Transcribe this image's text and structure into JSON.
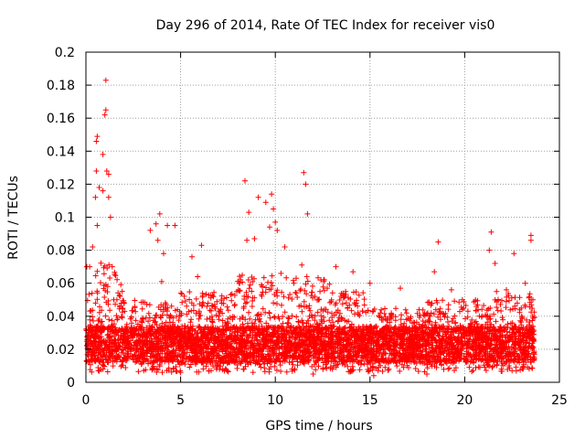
{
  "chart_data": {
    "type": "scatter",
    "title": "Day 296 of 2014, Rate Of TEC Index for receiver vis0",
    "xlabel": "GPS time / hours",
    "ylabel": "ROTI / TECUs",
    "xlim": [
      0,
      25
    ],
    "ylim": [
      0,
      0.2
    ],
    "xticks": [
      0,
      5,
      10,
      15,
      20,
      25
    ],
    "yticks": [
      0,
      0.02,
      0.04,
      0.06,
      0.08,
      0.1,
      0.12,
      0.14,
      0.16,
      0.18,
      0.2
    ],
    "xtick_labels": [
      "0",
      "5",
      "10",
      "15",
      "20",
      "25"
    ],
    "ytick_labels": [
      "0",
      "0.02",
      "0.04",
      "0.06",
      "0.08",
      "0.1",
      "0.12",
      "0.14",
      "0.16",
      "0.18",
      "0.2"
    ],
    "grid": true,
    "marker": "+",
    "series": [
      {
        "name": "ROTI",
        "color": "#ff0000",
        "x_range": [
          0,
          23.7
        ],
        "typical_range": [
          0.01,
          0.05
        ],
        "notable_points": [
          [
            1.05,
            0.183
          ],
          [
            1.05,
            0.165
          ],
          [
            1.0,
            0.162
          ],
          [
            0.6,
            0.149
          ],
          [
            0.55,
            0.146
          ],
          [
            0.9,
            0.138
          ],
          [
            1.1,
            0.128
          ],
          [
            0.55,
            0.128
          ],
          [
            1.2,
            0.126
          ],
          [
            0.7,
            0.118
          ],
          [
            0.9,
            0.116
          ],
          [
            1.2,
            0.112
          ],
          [
            0.5,
            0.112
          ],
          [
            1.3,
            0.1
          ],
          [
            0.6,
            0.095
          ],
          [
            0.35,
            0.082
          ],
          [
            0.2,
            0.07
          ],
          [
            0.05,
            0.07
          ],
          [
            3.4,
            0.092
          ],
          [
            3.9,
            0.102
          ],
          [
            3.7,
            0.096
          ],
          [
            4.7,
            0.095
          ],
          [
            4.3,
            0.095
          ],
          [
            3.8,
            0.086
          ],
          [
            4.1,
            0.078
          ],
          [
            4.0,
            0.061
          ],
          [
            6.1,
            0.083
          ],
          [
            5.6,
            0.076
          ],
          [
            5.9,
            0.064
          ],
          [
            8.4,
            0.122
          ],
          [
            8.6,
            0.103
          ],
          [
            8.5,
            0.086
          ],
          [
            8.9,
            0.087
          ],
          [
            9.1,
            0.112
          ],
          [
            9.5,
            0.109
          ],
          [
            9.8,
            0.114
          ],
          [
            9.9,
            0.105
          ],
          [
            10.0,
            0.097
          ],
          [
            10.1,
            0.092
          ],
          [
            9.7,
            0.094
          ],
          [
            10.5,
            0.082
          ],
          [
            10.3,
            0.066
          ],
          [
            11.5,
            0.127
          ],
          [
            11.6,
            0.12
          ],
          [
            11.7,
            0.102
          ],
          [
            11.4,
            0.071
          ],
          [
            11.1,
            0.063
          ],
          [
            13.2,
            0.07
          ],
          [
            14.1,
            0.067
          ],
          [
            15.0,
            0.06
          ],
          [
            16.6,
            0.057
          ],
          [
            18.6,
            0.085
          ],
          [
            18.4,
            0.067
          ],
          [
            19.3,
            0.056
          ],
          [
            21.4,
            0.091
          ],
          [
            21.3,
            0.08
          ],
          [
            21.6,
            0.072
          ],
          [
            22.6,
            0.078
          ],
          [
            23.5,
            0.089
          ],
          [
            23.5,
            0.086
          ],
          [
            22.2,
            0.056
          ],
          [
            23.2,
            0.06
          ],
          [
            23.6,
            0.05
          ],
          [
            15.2,
            0.004
          ],
          [
            0.9,
            0.008
          ],
          [
            5.0,
            0.006
          ],
          [
            12.0,
            0.005
          ],
          [
            18.0,
            0.005
          ],
          [
            22.5,
            0.007
          ]
        ]
      }
    ]
  }
}
